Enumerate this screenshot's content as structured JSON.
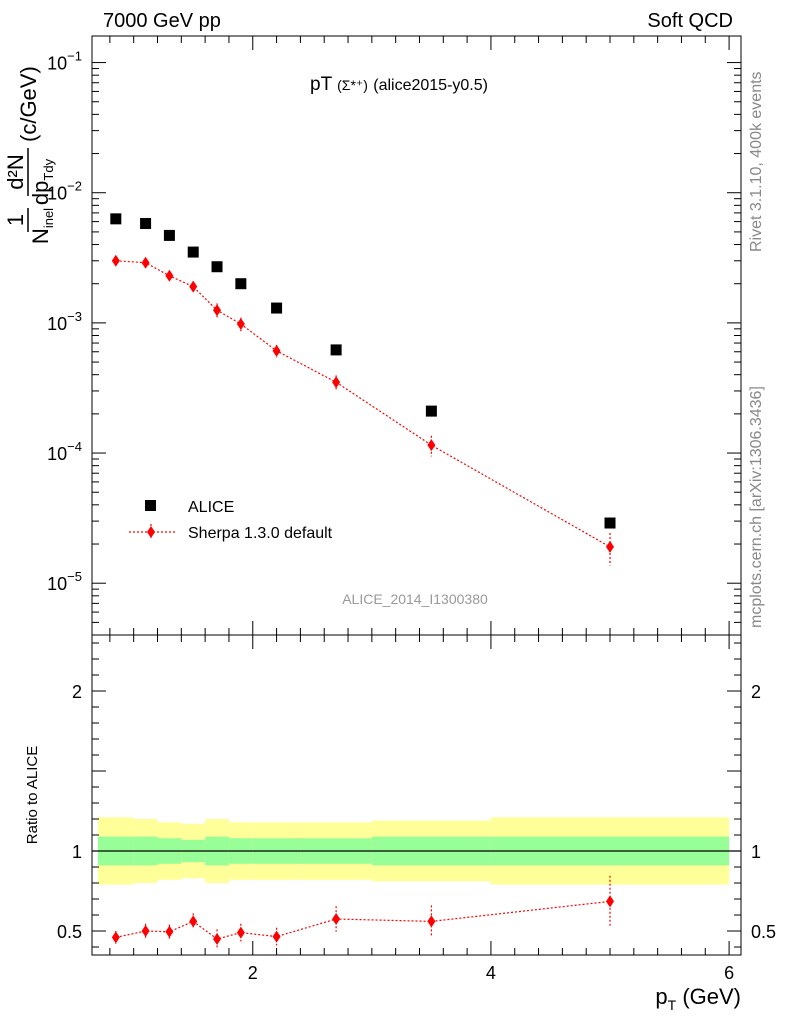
{
  "header": {
    "left": "7000 GeV pp",
    "right": "Soft QCD"
  },
  "side_labels": {
    "rivet": "Rivet 3.1.10,  400k events",
    "mcplots": "mcplots.cern.ch [arXiv:1306.3436]"
  },
  "chart_data": [
    {
      "type": "scatter",
      "title_main": "pT",
      "title_particle": "(Σ*⁺)",
      "title_tag": " (alice2015-y0.5)",
      "watermark": "ALICE_2014_I1300380",
      "ylabel": {
        "prefix": "1",
        "den_main": "N",
        "den_sub": "inel",
        "num2": "d²N",
        "den2_main": "dp",
        "den2_sub": "Tdy",
        "unit": "(c/GeV)"
      },
      "yscale": "log",
      "ylim": [
        4e-06,
        0.16
      ],
      "xlim": [
        0.65,
        6.1
      ],
      "y_tick_labels": [
        {
          "base": "10",
          "exp": "−1",
          "value": 0.1
        },
        {
          "base": "10",
          "exp": "−2",
          "value": 0.01
        },
        {
          "base": "10",
          "exp": "−3",
          "value": 0.001
        },
        {
          "base": "10",
          "exp": "−4",
          "value": 0.0001
        },
        {
          "base": "10",
          "exp": "−5",
          "value": 1e-05
        }
      ],
      "legend": {
        "position": "bottom-left"
      },
      "series": [
        {
          "name": "ALICE",
          "marker": "square",
          "color": "#000000",
          "x": [
            0.85,
            1.1,
            1.3,
            1.5,
            1.7,
            1.9,
            2.2,
            2.7,
            3.5,
            5.0
          ],
          "y": [
            0.0063,
            0.0058,
            0.0047,
            0.0035,
            0.0027,
            0.002,
            0.0013,
            0.00062,
            0.00021,
            2.9e-05
          ],
          "x_edges": [
            0.7,
            1.0,
            1.2,
            1.4,
            1.6,
            1.8,
            2.0,
            2.4,
            3.0,
            4.0,
            6.0
          ]
        },
        {
          "name": "Sherpa 1.3.0 default",
          "marker": "diamond",
          "color": "#ff0000",
          "x": [
            0.85,
            1.1,
            1.3,
            1.5,
            1.7,
            1.9,
            2.2,
            2.7,
            3.5,
            5.0
          ],
          "y": [
            0.003,
            0.0029,
            0.0023,
            0.0019,
            0.00125,
            0.00098,
            0.00061,
            0.00035,
            0.000115,
            1.9e-05
          ],
          "yerr_rel": [
            0.08,
            0.08,
            0.08,
            0.09,
            0.13,
            0.12,
            0.11,
            0.13,
            0.18,
            0.28
          ]
        }
      ]
    },
    {
      "type": "scatter",
      "ylabel": "Ratio to ALICE",
      "xlabel": {
        "main": "p",
        "sub": "T",
        "unit": " (GeV)"
      },
      "ylim": [
        0.35,
        2.35
      ],
      "xlim": [
        0.65,
        6.1
      ],
      "x_ticks": [
        {
          "value": 2,
          "label": "2"
        },
        {
          "value": 4,
          "label": "4"
        },
        {
          "value": 6,
          "label": "6"
        }
      ],
      "y_ticks": [
        {
          "value": 0.5,
          "label": "0.5"
        },
        {
          "value": 1,
          "label": "1"
        },
        {
          "value": 2,
          "label": "2"
        }
      ],
      "bands": {
        "x_edges": [
          0.7,
          1.0,
          1.2,
          1.4,
          1.6,
          1.8,
          2.0,
          2.4,
          3.0,
          4.0,
          6.0
        ],
        "green_half": [
          0.09,
          0.09,
          0.08,
          0.07,
          0.09,
          0.08,
          0.08,
          0.08,
          0.09,
          0.09
        ],
        "yellow_half": [
          0.21,
          0.2,
          0.18,
          0.17,
          0.2,
          0.18,
          0.18,
          0.18,
          0.19,
          0.21
        ],
        "colors": {
          "green": "#98ff98",
          "yellow": "#ffff99"
        }
      },
      "series": [
        {
          "name": "Sherpa 1.3.0 default",
          "marker": "diamond",
          "color": "#ff0000",
          "x": [
            0.85,
            1.1,
            1.3,
            1.5,
            1.7,
            1.9,
            2.2,
            2.7,
            3.5,
            5.0
          ],
          "y": [
            0.46,
            0.5,
            0.495,
            0.56,
            0.45,
            0.49,
            0.465,
            0.575,
            0.56,
            0.685
          ],
          "yerr": [
            0.04,
            0.045,
            0.045,
            0.05,
            0.06,
            0.055,
            0.055,
            0.08,
            0.1,
            0.16
          ]
        }
      ]
    }
  ]
}
